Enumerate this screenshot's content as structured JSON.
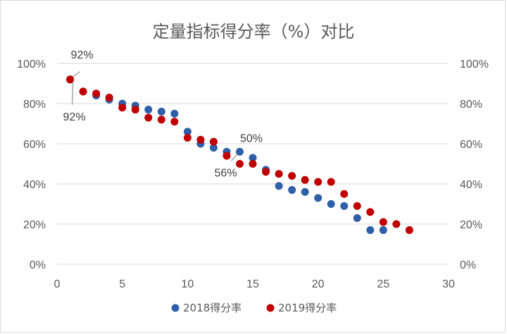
{
  "chart_data": {
    "type": "scatter",
    "title": "定量指标得分率（%）对比",
    "xlabel": "",
    "ylabel": "",
    "xlim": [
      0,
      30
    ],
    "ylim": [
      0,
      100
    ],
    "x_ticks": [
      "0",
      "5",
      "10",
      "15",
      "20",
      "25",
      "30"
    ],
    "y_ticks": [
      "0%",
      "20%",
      "40%",
      "60%",
      "80%",
      "100%"
    ],
    "y2_ticks": [
      "0%",
      "20%",
      "40%",
      "60%",
      "80%",
      "100%"
    ],
    "grid": true,
    "legend_position": "bottom",
    "series": [
      {
        "name": "2018得分率",
        "color": "#2e5fa8",
        "x": [
          1,
          2,
          3,
          4,
          5,
          6,
          7,
          8,
          9,
          10,
          11,
          12,
          13,
          14,
          15,
          16,
          17,
          18,
          19,
          20,
          21,
          22,
          23,
          24,
          25
        ],
        "y": [
          92,
          86,
          84,
          82,
          80,
          79,
          77,
          76,
          75,
          66,
          60,
          58,
          56,
          56,
          53,
          47,
          39,
          37,
          36,
          33,
          30,
          29,
          23,
          17,
          17
        ]
      },
      {
        "name": "2019得分率",
        "color": "#c00000",
        "x": [
          1,
          2,
          3,
          4,
          5,
          6,
          7,
          8,
          9,
          10,
          11,
          12,
          13,
          14,
          15,
          16,
          17,
          18,
          19,
          20,
          21,
          22,
          23,
          24,
          25,
          26,
          27
        ],
        "y": [
          92,
          86,
          85,
          83,
          78,
          77,
          73,
          72,
          71,
          63,
          62,
          61,
          54,
          50,
          50,
          46,
          45,
          44,
          42,
          41,
          41,
          35,
          29,
          26,
          21,
          20,
          17
        ]
      }
    ],
    "annotations": [
      {
        "text": "92%",
        "series": 0,
        "index": 0
      },
      {
        "text": "92%",
        "series": 1,
        "index": 0
      },
      {
        "text": "56%",
        "series": 0,
        "index": 13
      },
      {
        "text": "50%",
        "series": 1,
        "index": 14
      }
    ]
  }
}
